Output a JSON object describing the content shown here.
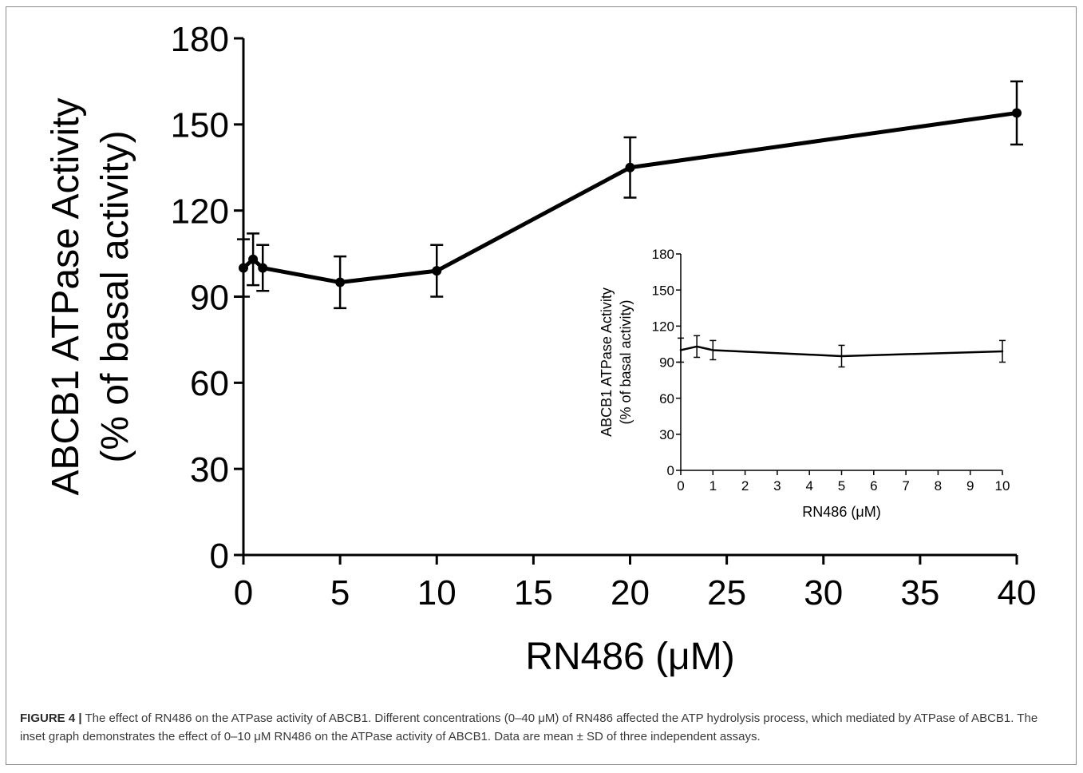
{
  "chart_data": [
    {
      "type": "line",
      "id": "main",
      "xlabel": "RN486 (μM)",
      "ylabel_line1": "ABCB1 ATPase Activity",
      "ylabel_line2": "(% of basal activity)",
      "xlim": [
        0,
        40
      ],
      "ylim": [
        0,
        180
      ],
      "xticks": [
        0,
        5,
        10,
        15,
        20,
        25,
        30,
        35,
        40
      ],
      "yticks": [
        0,
        30,
        60,
        90,
        120,
        150,
        180
      ],
      "grid": false,
      "series": [
        {
          "x": [
            0,
            0.5,
            1,
            5,
            10,
            20,
            40
          ],
          "y": [
            100,
            103,
            100,
            95,
            99,
            135,
            154
          ],
          "error": [
            10,
            9,
            8,
            9,
            9,
            10.5,
            11
          ]
        }
      ]
    },
    {
      "type": "line",
      "id": "inset",
      "xlabel": "RN486 (μM)",
      "ylabel_line1": "ABCB1 ATPase Activity",
      "ylabel_line2": "(% of basal activity)",
      "xlim": [
        0,
        10
      ],
      "ylim": [
        0,
        180
      ],
      "xticks": [
        0,
        1,
        2,
        3,
        4,
        5,
        6,
        7,
        8,
        9,
        10
      ],
      "yticks": [
        0,
        30,
        60,
        90,
        120,
        150,
        180
      ],
      "grid": false,
      "series": [
        {
          "x": [
            0,
            0.5,
            1,
            5,
            10
          ],
          "y": [
            100,
            103,
            100,
            95,
            99
          ],
          "error": [
            10,
            9,
            8,
            9,
            9
          ]
        }
      ]
    }
  ],
  "caption": {
    "lead": "FIGURE 4 |",
    "text": " The effect of RN486 on the ATPase activity of ABCB1. Different concentrations (0–40 μM) of RN486 affected the ATP hydrolysis process, which mediated by ATPase of ABCB1. The inset graph demonstrates the effect of 0–10 μM RN486 on the ATPase activity of ABCB1. Data are mean ± SD of three independent assays."
  }
}
